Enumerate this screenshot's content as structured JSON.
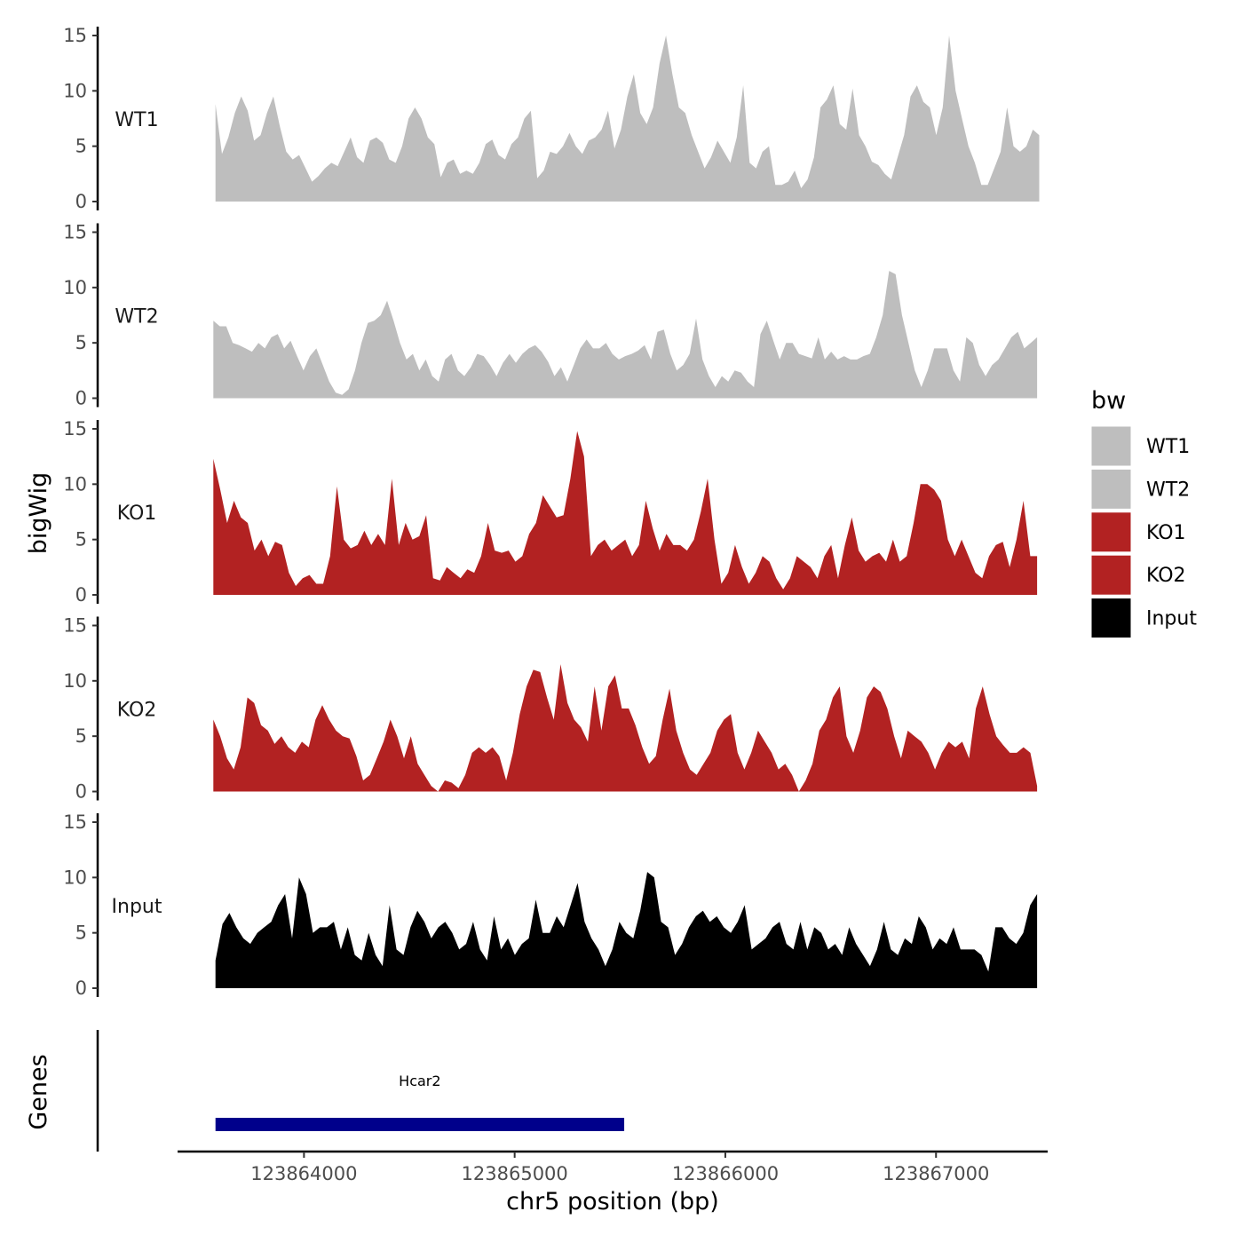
{
  "chart_data": {
    "type": "area",
    "ylabel": "bigWig",
    "xlabel": "chr5 position (bp)",
    "ylim": [
      0,
      15
    ],
    "yticks": [
      0,
      5,
      10,
      15
    ],
    "xlim": [
      123863400,
      123867530
    ],
    "xticks": [
      123864000,
      123865000,
      123866000,
      123867000
    ],
    "xtick_labels": [
      "123864000",
      "123865000",
      "123866000",
      "123867000"
    ],
    "legend": {
      "title": "bw",
      "placement": "right",
      "entries": [
        {
          "label": "WT1",
          "color": "#bebebe"
        },
        {
          "label": "WT2",
          "color": "#bebebe"
        },
        {
          "label": "KO1",
          "color": "#b22222"
        },
        {
          "label": "KO2",
          "color": "#b22222"
        },
        {
          "label": "Input",
          "color": "#000000"
        }
      ]
    },
    "tracks": [
      {
        "name": "WT1",
        "color": "#bebebe",
        "x_start": 123863580,
        "x_end": 123867490,
        "values": [
          8.8,
          4.3,
          5.8,
          8.0,
          9.5,
          8.2,
          5.5,
          6.0,
          8.0,
          9.5,
          6.8,
          4.5,
          3.8,
          4.2,
          3.0,
          1.8,
          2.3,
          3.0,
          3.5,
          3.2,
          4.5,
          5.8,
          4.0,
          3.5,
          5.5,
          5.8,
          5.3,
          3.8,
          3.5,
          5.0,
          7.5,
          8.5,
          7.5,
          5.8,
          5.2,
          2.2,
          3.5,
          3.8,
          2.5,
          2.8,
          2.5,
          3.5,
          5.2,
          5.6,
          4.2,
          3.8,
          5.2,
          5.8,
          7.5,
          8.2,
          2.1,
          2.8,
          4.5,
          4.3,
          5.0,
          6.2,
          5.0,
          4.3,
          5.5,
          5.8,
          6.5,
          8.2,
          4.8,
          6.5,
          9.5,
          11.5,
          8.0,
          7.0,
          8.5,
          12.5,
          15.0,
          11.5,
          8.5,
          8.0,
          6.0,
          4.5,
          3.0,
          4.0,
          5.5,
          4.5,
          3.5,
          5.8,
          10.5,
          3.5,
          3.0,
          4.5,
          5.0,
          1.5,
          1.5,
          1.8,
          2.8,
          1.2,
          2.0,
          4.0,
          8.5,
          9.2,
          10.5,
          7.0,
          6.5,
          10.2,
          6.0,
          5.0,
          3.6,
          3.3,
          2.5,
          2.0,
          4.0,
          6.0,
          9.5,
          10.5,
          9.0,
          8.5,
          6.0,
          8.5,
          15.0,
          10.0,
          7.5,
          5.0,
          3.5,
          1.5,
          1.5,
          3.0,
          4.5,
          8.5,
          5.0,
          4.5,
          5.0,
          6.5,
          6.0
        ]
      },
      {
        "name": "WT2",
        "color": "#bebebe",
        "x_start": 123863570,
        "x_end": 123867480,
        "values": [
          7.0,
          6.5,
          6.5,
          5.0,
          4.8,
          4.5,
          4.2,
          5.0,
          4.5,
          5.5,
          5.8,
          4.5,
          5.2,
          3.8,
          2.5,
          3.8,
          4.5,
          3.0,
          1.5,
          0.5,
          0.3,
          0.8,
          2.5,
          5.0,
          6.8,
          7.0,
          7.5,
          8.8,
          7.0,
          5.0,
          3.5,
          4.0,
          2.5,
          3.5,
          2.0,
          1.5,
          3.5,
          4.0,
          2.5,
          2.0,
          2.8,
          4.0,
          3.8,
          3.0,
          2.0,
          3.2,
          4.0,
          3.2,
          4.0,
          4.5,
          4.8,
          4.2,
          3.3,
          2.0,
          2.8,
          1.5,
          3.0,
          4.5,
          5.3,
          4.5,
          4.5,
          5.0,
          4.0,
          3.5,
          3.8,
          4.0,
          4.3,
          4.8,
          3.5,
          6.0,
          6.2,
          4.0,
          2.5,
          3.0,
          4.0,
          7.2,
          3.5,
          2.0,
          1.0,
          2.0,
          1.5,
          2.5,
          2.3,
          1.5,
          1.0,
          5.8,
          7.0,
          5.2,
          3.5,
          5.0,
          5.0,
          4.0,
          3.8,
          3.6,
          5.5,
          3.5,
          4.2,
          3.5,
          3.8,
          3.5,
          3.5,
          3.8,
          4.0,
          5.5,
          7.5,
          11.5,
          11.2,
          7.5,
          5.0,
          2.5,
          1.0,
          2.5,
          4.5,
          4.5,
          4.5,
          2.5,
          1.5,
          5.5,
          5.0,
          3.0,
          2.0,
          3.0,
          3.5,
          4.5,
          5.5,
          6.0,
          4.5,
          5.0,
          5.5
        ]
      },
      {
        "name": "KO1",
        "color": "#b22222",
        "x_start": 123863570,
        "x_end": 123867480,
        "values": [
          12.3,
          9.5,
          6.5,
          8.5,
          7.0,
          6.5,
          4.0,
          5.0,
          3.5,
          4.8,
          4.5,
          2.0,
          0.8,
          1.5,
          1.8,
          1.0,
          1.0,
          3.5,
          9.8,
          5.0,
          4.2,
          4.5,
          5.8,
          4.5,
          5.5,
          4.5,
          10.5,
          4.5,
          6.5,
          5.0,
          5.3,
          7.2,
          1.5,
          1.3,
          2.5,
          2.0,
          1.5,
          2.3,
          2.0,
          3.5,
          6.5,
          4.0,
          3.8,
          4.0,
          3.0,
          3.5,
          5.5,
          6.5,
          9.0,
          8.0,
          7.0,
          7.2,
          10.5,
          14.8,
          12.5,
          3.5,
          4.5,
          5.0,
          4.0,
          4.5,
          5.0,
          3.5,
          4.5,
          8.5,
          6.0,
          4.0,
          5.5,
          4.5,
          4.5,
          4.0,
          5.0,
          7.5,
          10.5,
          5.0,
          1.0,
          2.0,
          4.5,
          2.5,
          1.0,
          2.0,
          3.5,
          3.0,
          1.5,
          0.5,
          1.5,
          3.5,
          3.0,
          2.5,
          1.5,
          3.5,
          4.5,
          1.5,
          4.5,
          7.0,
          4.0,
          3.0,
          3.5,
          3.8,
          3.0,
          5.0,
          3.0,
          3.5,
          6.5,
          10.0,
          10.0,
          9.5,
          8.5,
          5.0,
          3.5,
          5.0,
          3.5,
          2.0,
          1.5,
          3.5,
          4.5,
          4.8,
          2.5,
          5.0,
          8.5,
          3.5,
          3.5
        ]
      },
      {
        "name": "KO2",
        "color": "#b22222",
        "x_start": 123863570,
        "x_end": 123867480,
        "values": [
          6.5,
          5.0,
          3.0,
          2.0,
          4.0,
          8.5,
          8.0,
          6.0,
          5.5,
          4.3,
          5.0,
          4.0,
          3.5,
          4.5,
          4.0,
          6.5,
          7.8,
          6.5,
          5.5,
          5.0,
          4.8,
          3.2,
          1.0,
          1.5,
          3.0,
          4.5,
          6.5,
          5.0,
          3.0,
          5.0,
          2.5,
          1.5,
          0.5,
          0.0,
          1.0,
          0.8,
          0.3,
          1.5,
          3.5,
          4.0,
          3.5,
          4.0,
          3.2,
          1.0,
          3.5,
          7.0,
          9.5,
          11.0,
          10.8,
          8.5,
          6.5,
          11.5,
          8.0,
          6.5,
          5.8,
          4.5,
          9.5,
          5.5,
          9.5,
          10.5,
          7.5,
          7.5,
          6.0,
          4.0,
          2.5,
          3.2,
          6.5,
          9.3,
          5.5,
          3.5,
          2.0,
          1.5,
          2.5,
          3.5,
          5.5,
          6.5,
          7.0,
          3.5,
          2.0,
          3.5,
          5.5,
          4.5,
          3.5,
          2.0,
          2.5,
          1.5,
          0.0,
          1.0,
          2.5,
          5.5,
          6.5,
          8.5,
          9.5,
          5.0,
          3.5,
          5.5,
          8.5,
          9.5,
          9.0,
          7.5,
          5.0,
          3.0,
          5.5,
          5.0,
          4.5,
          3.5,
          2.0,
          3.5,
          4.5,
          4.0,
          4.5,
          3.0,
          7.5,
          9.5,
          7.0,
          5.0,
          4.2,
          3.5,
          3.5,
          4.0,
          3.5,
          0.5
        ]
      },
      {
        "name": "Input",
        "color": "#000000",
        "x_start": 123863580,
        "x_end": 123867480,
        "values": [
          2.5,
          5.8,
          6.8,
          5.5,
          4.5,
          4.0,
          5.0,
          5.5,
          6.0,
          7.5,
          8.5,
          4.5,
          10.0,
          8.5,
          5.0,
          5.5,
          5.5,
          6.0,
          3.5,
          5.5,
          3.0,
          2.5,
          5.0,
          3.0,
          2.0,
          7.5,
          3.5,
          3.0,
          5.5,
          7.0,
          6.0,
          4.5,
          5.5,
          6.0,
          5.0,
          3.5,
          4.0,
          6.0,
          3.5,
          2.5,
          6.5,
          3.5,
          4.5,
          3.0,
          4.0,
          4.5,
          8.0,
          5.0,
          5.0,
          6.5,
          5.5,
          7.5,
          9.5,
          6.0,
          4.5,
          3.5,
          2.0,
          3.5,
          6.0,
          5.0,
          4.5,
          7.0,
          10.5,
          10.0,
          6.0,
          5.5,
          3.0,
          4.0,
          5.5,
          6.5,
          7.0,
          6.0,
          6.5,
          5.5,
          5.0,
          6.0,
          7.5,
          3.5,
          4.0,
          4.5,
          5.5,
          6.0,
          4.0,
          3.5,
          6.0,
          3.5,
          5.5,
          5.0,
          3.5,
          4.0,
          3.0,
          5.5,
          4.0,
          3.0,
          2.0,
          3.5,
          6.0,
          3.5,
          3.0,
          4.5,
          4.0,
          6.5,
          5.5,
          3.5,
          4.5,
          4.0,
          5.5,
          3.5,
          3.5,
          3.5,
          3.0,
          1.5,
          5.5,
          5.5,
          4.5,
          4.0,
          5.0,
          7.5,
          8.5
        ]
      }
    ],
    "genes_track": {
      "label": "Genes",
      "genes": [
        {
          "name": "Hcar2",
          "start": 123863580,
          "end": 123865520,
          "color": "#00008b"
        }
      ]
    }
  }
}
